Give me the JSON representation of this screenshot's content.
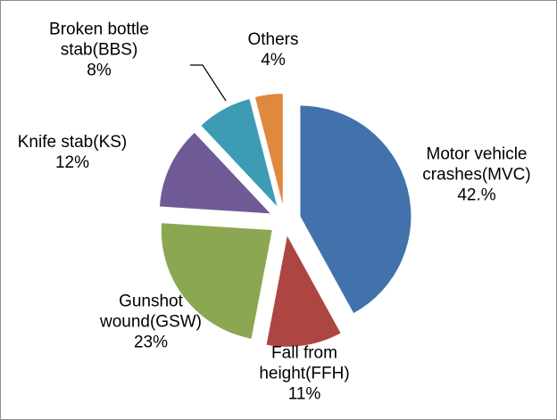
{
  "chart_data": {
    "type": "pie",
    "categories": [
      "Motor vehicle crashes(MVC)",
      "Fall from height(FFH)",
      "Gunshot wound(GSW)",
      "Knife stab(KS)",
      "Broken bottle stab(BBS)",
      "Others"
    ],
    "values": [
      42,
      11,
      23,
      12,
      8,
      4
    ],
    "value_labels": [
      "42.%",
      "11%",
      "23%",
      "12%",
      "8%",
      "4%"
    ],
    "colors": [
      "#4272ab",
      "#ad4543",
      "#8ba751",
      "#6f5a95",
      "#3d9bb4",
      "#e0883d"
    ]
  }
}
